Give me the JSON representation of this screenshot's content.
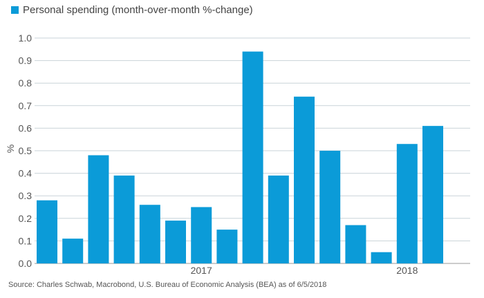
{
  "chart_data": {
    "type": "bar",
    "title": "",
    "legend": {
      "label": "Personal spending (month-over-month %-change)",
      "position": "top-left"
    },
    "ylabel": "%",
    "xlabel": "",
    "ylim": [
      0,
      1.0
    ],
    "yticks": [
      "0.0",
      "0.1",
      "0.2",
      "0.3",
      "0.4",
      "0.5",
      "0.6",
      "0.7",
      "0.8",
      "0.9",
      "1.0"
    ],
    "year_labels": [
      {
        "label": "2017",
        "after_bar_index": 6
      },
      {
        "label": "2018",
        "after_bar_index": 14
      }
    ],
    "grid": true,
    "series": [
      {
        "name": "Personal spending (month-over-month %-change)",
        "color": "#0b9bd8",
        "values": [
          0.28,
          0.11,
          0.48,
          0.39,
          0.26,
          0.19,
          0.25,
          0.15,
          0.94,
          0.39,
          0.74,
          0.5,
          0.17,
          0.05,
          0.53,
          0.61
        ]
      }
    ]
  },
  "source": "Source: Charles Schwab, Macrobond, U.S. Bureau of Economic Analysis (BEA) as of 6/5/2018"
}
